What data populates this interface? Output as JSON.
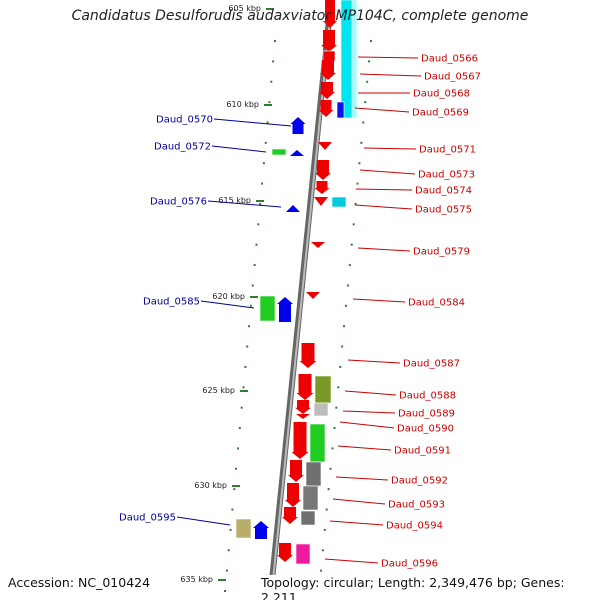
{
  "title": "Candidatus Desulforudis audaxviator MP104C, complete genome",
  "accession": "Accession: NC_010424",
  "topology": "Topology: circular; Length: 2,349,476 bp; Genes: 2,211",
  "colors": {
    "label_right": "#cc0000",
    "label_left": "#000099",
    "backbone": "#888888",
    "tick": "#2e7d32"
  },
  "kbp_markers": [
    "605 kbp",
    "610 kbp",
    "615 kbp",
    "620 kbp",
    "625 kbp",
    "630 kbp",
    "635 kbp"
  ],
  "genes_right": [
    "Daud_0566",
    "Daud_0567",
    "Daud_0568",
    "Daud_0569",
    "Daud_0571",
    "Daud_0573",
    "Daud_0574",
    "Daud_0575",
    "Daud_0579",
    "Daud_0584",
    "Daud_0587",
    "Daud_0588",
    "Daud_0589",
    "Daud_0590",
    "Daud_0591",
    "Daud_0592",
    "Daud_0593",
    "Daud_0594",
    "Daud_0596"
  ],
  "genes_left": [
    "Daud_0570",
    "Daud_0572",
    "Daud_0576",
    "Daud_0585",
    "Daud_0595"
  ]
}
